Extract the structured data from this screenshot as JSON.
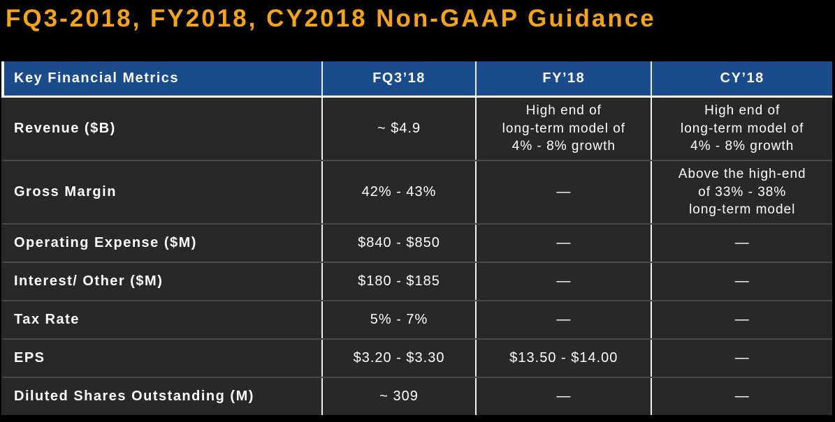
{
  "title": "FQ3-2018, FY2018, CY2018 Non-GAAP Guidance",
  "colors": {
    "title_gold": "#F2A41E",
    "header_blue": "#1A4B8A",
    "row_bg": "#282828",
    "page_bg": "#000000",
    "text": "#FFFFFF",
    "row_divider": "#4A4A4A",
    "column_divider": "#F2F2F2"
  },
  "table": {
    "headers": {
      "metrics": "Key Financial Metrics",
      "fq3": "FQ3’18",
      "fy": "FY’18",
      "cy": "CY’18"
    },
    "rows": [
      {
        "metric": "Revenue ($B)",
        "fq3": "~ $4.9",
        "fy": "High end of\nlong-term model of\n4% - 8% growth",
        "cy": "High end of\nlong-term model of\n4% - 8% growth"
      },
      {
        "metric": "Gross Margin",
        "fq3": "42% - 43%",
        "fy": "—",
        "cy": "Above the high-end\nof 33% - 38%\nlong-term model"
      },
      {
        "metric": "Operating Expense ($M)",
        "fq3": "$840 - $850",
        "fy": "—",
        "cy": "—"
      },
      {
        "metric": "Interest/ Other ($M)",
        "fq3": "$180 - $185",
        "fy": "—",
        "cy": "—"
      },
      {
        "metric": "Tax Rate",
        "fq3": "5% - 7%",
        "fy": "—",
        "cy": "—"
      },
      {
        "metric": "EPS",
        "fq3": "$3.20 - $3.30",
        "fy": "$13.50 - $14.00",
        "cy": "—"
      },
      {
        "metric": "Diluted Shares Outstanding (M)",
        "fq3": "~ 309",
        "fy": "—",
        "cy": "—"
      }
    ]
  }
}
